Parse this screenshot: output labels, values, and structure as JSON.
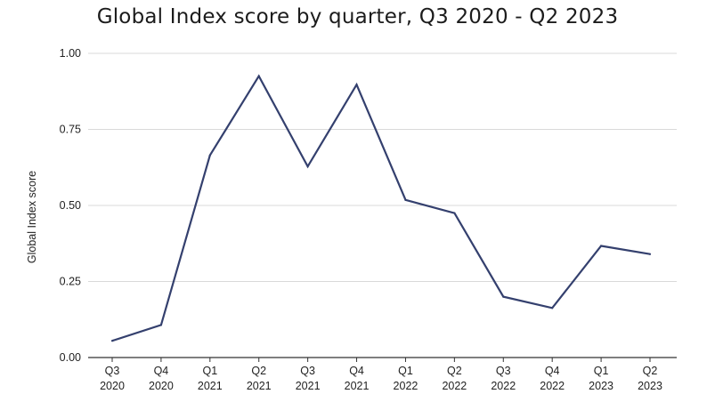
{
  "chart_data": {
    "type": "line",
    "title": "Global Index score by quarter, Q3 2020 - Q2 2023",
    "xlabel": "",
    "ylabel": "Global Index score",
    "ylim": [
      0,
      1
    ],
    "yticks": [
      "0.00",
      "0.25",
      "0.50",
      "0.75",
      "1.00"
    ],
    "ytick_values": [
      0,
      0.25,
      0.5,
      0.75,
      1.0
    ],
    "categories": [
      [
        "Q3",
        "2020"
      ],
      [
        "Q4",
        "2020"
      ],
      [
        "Q1",
        "2021"
      ],
      [
        "Q2",
        "2021"
      ],
      [
        "Q3",
        "2021"
      ],
      [
        "Q4",
        "2021"
      ],
      [
        "Q1",
        "2022"
      ],
      [
        "Q2",
        "2022"
      ],
      [
        "Q3",
        "2022"
      ],
      [
        "Q4",
        "2022"
      ],
      [
        "Q1",
        "2023"
      ],
      [
        "Q2",
        "2023"
      ]
    ],
    "series": [
      {
        "values": [
          0.055,
          0.107,
          0.665,
          0.925,
          0.628,
          0.897,
          0.518,
          0.475,
          0.2,
          0.163,
          0.367,
          0.34
        ]
      }
    ],
    "grid": true,
    "legend": "none",
    "colors": {
      "line": "#34406e",
      "grid": "#d9d9d9",
      "axis": "#333333"
    }
  }
}
